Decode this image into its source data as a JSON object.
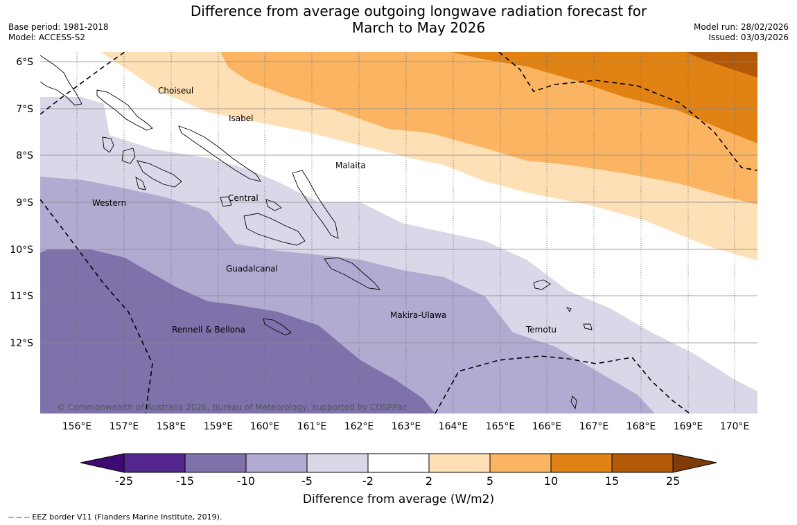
{
  "title_line1": "Difference from average outgoing longwave radiation forecast for",
  "title_line2": "March to May 2026",
  "base_period": "Base period: 1981-2018",
  "model": "Model: ACCESS-S2",
  "model_run": "Model run: 28/02/2026",
  "issued": "Issued: 03/03/2026",
  "copyright": "© Commonwealth of Australia 2026, Bureau of Meteorology, supported by COSPPac",
  "eez_note": "--  --  -- EEZ border V11 (Flanders Marine Institute, 2019).",
  "colorbar": {
    "title": "Difference from average (W/m2)",
    "ticks": [
      "-25",
      "-15",
      "-10",
      "-5",
      "-2",
      "2",
      "5",
      "10",
      "15",
      "25"
    ],
    "colors": [
      "#3f0a72",
      "#54278f",
      "#7f72ab",
      "#b1abd2",
      "#d8d8e9",
      "#ffffff",
      "#fee0b6",
      "#fbb462",
      "#e08214",
      "#b35806",
      "#7f3b08"
    ]
  },
  "map": {
    "lat_labels": [
      "6°S",
      "7°S",
      "8°S",
      "9°S",
      "10°S",
      "11°S",
      "12°S"
    ],
    "lon_labels": [
      "156°E",
      "157°E",
      "158°E",
      "159°E",
      "160°E",
      "161°E",
      "162°E",
      "163°E",
      "164°E",
      "165°E",
      "166°E",
      "167°E",
      "168°E",
      "169°E",
      "170°E"
    ],
    "regions": {
      "choiseul": "Choiseul",
      "isabel": "Isabel",
      "malaita": "Malaita",
      "western": "Western",
      "central": "Central",
      "guadalcanal": "Guadalcanal",
      "makira": "Makira-Ulawa",
      "temotu": "Temotu",
      "rennell": "Rennell & Bellona"
    }
  }
}
